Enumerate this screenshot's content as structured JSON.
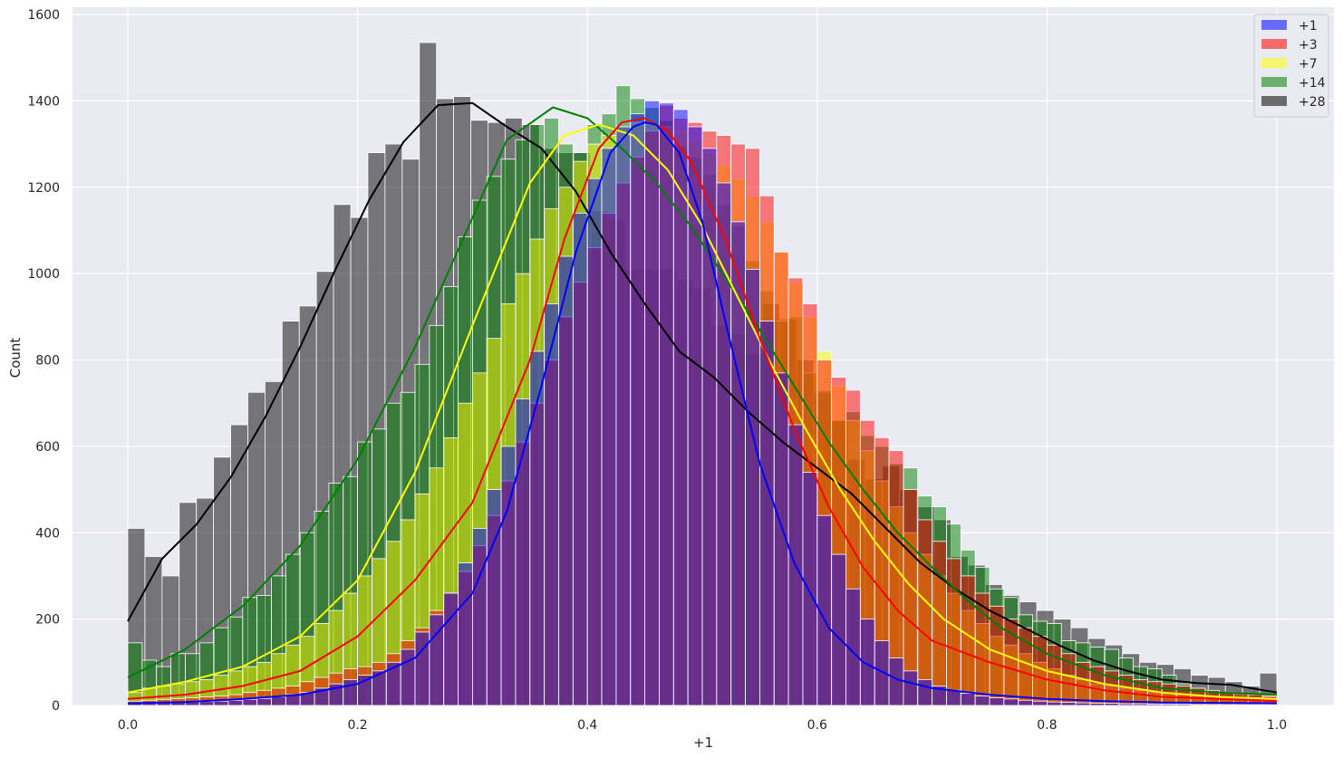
{
  "chart_data": {
    "type": "histogram",
    "xlabel": "+1",
    "ylabel": "Count",
    "xlim": [
      -0.05,
      1.05
    ],
    "ylim": [
      0,
      1600
    ],
    "xticks": [
      "0.0",
      "0.2",
      "0.4",
      "0.6",
      "0.8",
      "1.0"
    ],
    "xtick_values": [
      0,
      0.2,
      0.4,
      0.6,
      0.8,
      1.0
    ],
    "yticks": [
      "0",
      "200",
      "400",
      "600",
      "800",
      "1000",
      "1200",
      "1400",
      "1600"
    ],
    "ytick_values": [
      0,
      200,
      400,
      600,
      800,
      1000,
      1200,
      1400,
      1600
    ],
    "grid": true,
    "legend_position": "top-right",
    "series": [
      {
        "name": "+28",
        "color": "#000000",
        "bins": 67,
        "bin_width": 0.014925,
        "values": [
          410,
          345,
          300,
          470,
          480,
          575,
          650,
          725,
          750,
          890,
          925,
          1005,
          1160,
          1130,
          1280,
          1300,
          1265,
          1535,
          1405,
          1410,
          1355,
          1350,
          1360,
          1345,
          1290,
          1280,
          1280,
          1145,
          1125,
          1010,
          1010,
          1010,
          985,
          965,
          880,
          860,
          815,
          930,
          895,
          800,
          725,
          660,
          570,
          525,
          555,
          500,
          460,
          430,
          345,
          325,
          280,
          255,
          240,
          220,
          200,
          180,
          155,
          140,
          120,
          100,
          95,
          85,
          70,
          65,
          55,
          45,
          75
        ],
        "kde_x": [
          0,
          0.03,
          0.06,
          0.09,
          0.12,
          0.15,
          0.18,
          0.21,
          0.24,
          0.27,
          0.3,
          0.33,
          0.36,
          0.39,
          0.42,
          0.45,
          0.48,
          0.51,
          0.54,
          0.57,
          0.6,
          0.63,
          0.66,
          0.69,
          0.72,
          0.75,
          0.78,
          0.81,
          0.84,
          0.87,
          0.9,
          0.93,
          0.96,
          1.0
        ],
        "kde_y": [
          195,
          340,
          420,
          530,
          670,
          830,
          1005,
          1170,
          1305,
          1390,
          1395,
          1340,
          1290,
          1190,
          1050,
          930,
          820,
          760,
          680,
          610,
          550,
          490,
          410,
          330,
          270,
          220,
          180,
          140,
          105,
          80,
          60,
          52,
          48,
          30
        ]
      },
      {
        "name": "+14",
        "color": "#008000",
        "bins": 80,
        "bin_width": 0.0125,
        "values": [
          145,
          105,
          90,
          120,
          120,
          145,
          180,
          205,
          250,
          255,
          300,
          350,
          400,
          450,
          515,
          530,
          610,
          640,
          700,
          725,
          790,
          880,
          970,
          1085,
          1170,
          1225,
          1265,
          1310,
          1345,
          1360,
          1300,
          1280,
          1345,
          1370,
          1435,
          1405,
          1385,
          1355,
          1295,
          1270,
          1230,
          1160,
          1110,
          1030,
          960,
          890,
          900,
          770,
          730,
          660,
          680,
          625,
          600,
          560,
          550,
          485,
          460,
          420,
          360,
          320,
          270,
          250,
          210,
          195,
          190,
          150,
          145,
          135,
          130,
          110,
          90,
          85,
          70,
          50,
          40,
          30,
          30,
          25,
          25,
          20
        ],
        "kde_x": [
          0,
          0.05,
          0.1,
          0.15,
          0.2,
          0.25,
          0.3,
          0.33,
          0.37,
          0.4,
          0.43,
          0.46,
          0.49,
          0.52,
          0.55,
          0.58,
          0.61,
          0.64,
          0.67,
          0.7,
          0.73,
          0.76,
          0.8,
          0.85,
          0.9,
          0.95,
          1.0
        ],
        "kde_y": [
          65,
          130,
          230,
          370,
          570,
          830,
          1130,
          1310,
          1385,
          1360,
          1290,
          1210,
          1110,
          990,
          870,
          740,
          610,
          500,
          400,
          320,
          245,
          180,
          120,
          70,
          40,
          30,
          25
        ]
      },
      {
        "name": "+7",
        "color": "#ffff00",
        "bins": 80,
        "bin_width": 0.0125,
        "values": [
          30,
          40,
          45,
          50,
          55,
          60,
          70,
          80,
          90,
          100,
          120,
          140,
          160,
          190,
          220,
          260,
          300,
          340,
          380,
          430,
          490,
          550,
          620,
          700,
          770,
          850,
          930,
          1000,
          1080,
          1150,
          1200,
          1260,
          1300,
          1320,
          1340,
          1350,
          1345,
          1340,
          1330,
          1310,
          1280,
          1250,
          1220,
          1180,
          1120,
          1050,
          980,
          900,
          820,
          740,
          660,
          590,
          520,
          460,
          400,
          350,
          300,
          260,
          220,
          190,
          160,
          140,
          120,
          100,
          85,
          70,
          60,
          50,
          45,
          40,
          35,
          30,
          28,
          25,
          22,
          20,
          18,
          16,
          15,
          14
        ],
        "kde_x": [
          0,
          0.05,
          0.1,
          0.15,
          0.2,
          0.25,
          0.3,
          0.35,
          0.38,
          0.41,
          0.44,
          0.47,
          0.5,
          0.53,
          0.56,
          0.59,
          0.62,
          0.65,
          0.68,
          0.71,
          0.75,
          0.8,
          0.85,
          0.9,
          0.95,
          1.0
        ],
        "kde_y": [
          30,
          55,
          90,
          160,
          290,
          540,
          880,
          1210,
          1320,
          1345,
          1320,
          1240,
          1110,
          950,
          790,
          640,
          500,
          380,
          280,
          200,
          130,
          80,
          50,
          30,
          20,
          15
        ]
      },
      {
        "name": "+3",
        "color": "#ff0000",
        "bins": 80,
        "bin_width": 0.0125,
        "values": [
          10,
          12,
          14,
          16,
          18,
          20,
          22,
          25,
          30,
          35,
          40,
          45,
          55,
          65,
          75,
          85,
          90,
          100,
          120,
          150,
          180,
          220,
          260,
          310,
          370,
          440,
          520,
          610,
          700,
          800,
          900,
          980,
          1060,
          1140,
          1210,
          1270,
          1330,
          1390,
          1360,
          1350,
          1330,
          1320,
          1300,
          1290,
          1180,
          1050,
          990,
          930,
          800,
          760,
          730,
          660,
          620,
          590,
          500,
          430,
          380,
          340,
          300,
          260,
          230,
          200,
          180,
          160,
          140,
          120,
          100,
          90,
          80,
          70,
          60,
          55,
          50,
          45,
          40,
          35,
          30,
          28,
          25,
          22
        ],
        "kde_x": [
          0,
          0.05,
          0.1,
          0.15,
          0.2,
          0.25,
          0.3,
          0.35,
          0.38,
          0.41,
          0.43,
          0.45,
          0.47,
          0.49,
          0.52,
          0.55,
          0.58,
          0.61,
          0.64,
          0.67,
          0.7,
          0.75,
          0.8,
          0.85,
          0.9,
          0.95,
          1.0
        ],
        "kde_y": [
          15,
          25,
          45,
          80,
          160,
          290,
          470,
          800,
          1080,
          1290,
          1350,
          1360,
          1330,
          1260,
          1080,
          850,
          640,
          460,
          320,
          220,
          150,
          100,
          60,
          35,
          20,
          15,
          10
        ]
      },
      {
        "name": "+1",
        "color": "#0000ff",
        "bins": 80,
        "bin_width": 0.0125,
        "values": [
          5,
          5,
          6,
          7,
          8,
          9,
          10,
          12,
          14,
          16,
          20,
          25,
          30,
          40,
          50,
          60,
          70,
          80,
          100,
          130,
          170,
          210,
          260,
          330,
          410,
          500,
          600,
          710,
          820,
          930,
          1040,
          1140,
          1220,
          1290,
          1340,
          1370,
          1400,
          1395,
          1380,
          1340,
          1290,
          1210,
          1120,
          1010,
          890,
          770,
          650,
          540,
          440,
          350,
          270,
          200,
          150,
          110,
          80,
          60,
          45,
          35,
          28,
          22,
          18,
          15,
          12,
          10,
          8,
          7,
          6,
          5,
          5,
          4,
          4,
          3,
          3,
          3,
          2,
          2,
          2,
          2,
          2,
          2
        ],
        "kde_x": [
          0,
          0.05,
          0.1,
          0.15,
          0.2,
          0.25,
          0.3,
          0.33,
          0.36,
          0.39,
          0.42,
          0.44,
          0.45,
          0.46,
          0.48,
          0.5,
          0.52,
          0.55,
          0.58,
          0.61,
          0.64,
          0.67,
          0.7,
          0.75,
          0.8,
          0.85,
          0.9,
          1.0
        ],
        "kde_y": [
          5,
          8,
          15,
          25,
          50,
          110,
          260,
          450,
          740,
          1050,
          1280,
          1340,
          1350,
          1345,
          1280,
          1120,
          890,
          560,
          330,
          180,
          100,
          60,
          40,
          25,
          15,
          10,
          7,
          5
        ]
      }
    ]
  },
  "legend": [
    {
      "label": "+1",
      "color": "#0000ff"
    },
    {
      "label": "+3",
      "color": "#ff0000"
    },
    {
      "label": "+7",
      "color": "#ffff00"
    },
    {
      "label": "+14",
      "color": "#008000"
    },
    {
      "label": "+28",
      "color": "#000000"
    }
  ]
}
